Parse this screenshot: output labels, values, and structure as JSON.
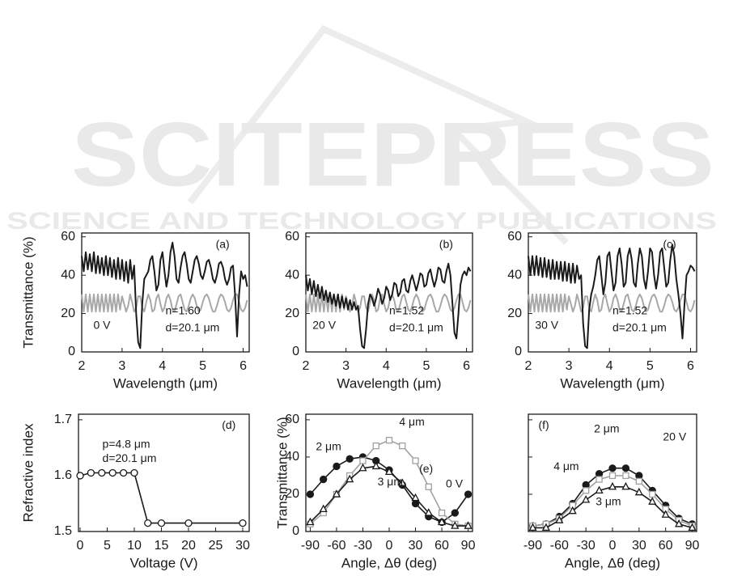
{
  "watermark": {
    "title": "SCITEPRESS",
    "subtitle": "SCIENCE AND TECHNOLOGY PUBLICATIONS"
  },
  "chart_data": [
    {
      "type": "line",
      "ylabel": "Transmittance (%)",
      "xlabel": "Wavelength (μm)",
      "xlim": [
        2,
        6.15
      ],
      "xticks": [
        2,
        3,
        4,
        5,
        6
      ],
      "ylim": [
        0,
        62
      ],
      "yticks": [
        0,
        20,
        40,
        60
      ],
      "annotations": [
        "(a)",
        "n=1.60",
        "d=20.1 μm",
        "0 V"
      ],
      "x": [
        2,
        2.05,
        2.1,
        2.15,
        2.2,
        2.25,
        2.3,
        2.35,
        2.4,
        2.45,
        2.5,
        2.55,
        2.6,
        2.65,
        2.7,
        2.75,
        2.8,
        2.85,
        2.9,
        2.95,
        3,
        3.05,
        3.1,
        3.15,
        3.2,
        3.25,
        3.3,
        3.35,
        3.4,
        3.45,
        3.5,
        3.55,
        3.6,
        3.65,
        3.7,
        3.75,
        3.8,
        3.85,
        3.9,
        3.95,
        4,
        4.05,
        4.1,
        4.15,
        4.2,
        4.25,
        4.3,
        4.35,
        4.4,
        4.45,
        4.5,
        4.55,
        4.6,
        4.65,
        4.7,
        4.75,
        4.8,
        4.85,
        4.9,
        4.95,
        5,
        5.05,
        5.1,
        5.15,
        5.2,
        5.25,
        5.3,
        5.35,
        5.4,
        5.45,
        5.5,
        5.55,
        5.6,
        5.65,
        5.7,
        5.75,
        5.8,
        5.85,
        5.9,
        5.95,
        6,
        6.05,
        6.1
      ],
      "series": [
        {
          "color": "#a8a8a8",
          "values": [
            30,
            21,
            30,
            21,
            30,
            21,
            30,
            21,
            30,
            21,
            30,
            21,
            30,
            21,
            30,
            21,
            30,
            21,
            30,
            22,
            29,
            25,
            21,
            24,
            30,
            26,
            21,
            23,
            29,
            29,
            23,
            21,
            26,
            30,
            27,
            21,
            22,
            28,
            30,
            25,
            21,
            23,
            28,
            30,
            27,
            22,
            21,
            25,
            29,
            30,
            26,
            22,
            21,
            24,
            28,
            30,
            28,
            24,
            21,
            22,
            26,
            29,
            30,
            28,
            24,
            21,
            21,
            24,
            28,
            30,
            29,
            26,
            22,
            21,
            23,
            27,
            30,
            30,
            26,
            22,
            21,
            23,
            27
          ]
        },
        {
          "color": "#1a1a1a",
          "values": [
            50,
            42,
            52,
            43,
            51,
            42,
            52,
            41,
            50,
            41,
            49,
            40,
            50,
            40,
            49,
            39,
            48,
            38,
            49,
            38,
            48,
            37,
            47,
            36,
            48,
            38,
            45,
            20,
            5,
            2,
            25,
            38,
            40,
            42,
            48,
            50,
            42,
            32,
            35,
            48,
            52,
            42,
            34,
            40,
            52,
            57,
            50,
            38,
            36,
            44,
            50,
            52,
            46,
            38,
            36,
            42,
            48,
            50,
            46,
            40,
            38,
            42,
            47,
            48,
            44,
            38,
            36,
            40,
            46,
            47,
            44,
            38,
            35,
            38,
            44,
            45,
            30,
            8,
            30,
            42,
            38,
            40,
            34
          ]
        }
      ]
    },
    {
      "type": "line",
      "xlabel": "Wavelength (μm)",
      "xlim": [
        2,
        6.15
      ],
      "xticks": [
        2,
        3,
        4,
        5,
        6
      ],
      "ylim": [
        0,
        62
      ],
      "yticks": [
        0,
        20,
        40,
        60
      ],
      "annotations": [
        "(b)",
        "n=1.52",
        "d=20.1 μm",
        "20 V"
      ],
      "x": [
        2,
        2.05,
        2.1,
        2.15,
        2.2,
        2.25,
        2.3,
        2.35,
        2.4,
        2.45,
        2.5,
        2.55,
        2.6,
        2.65,
        2.7,
        2.75,
        2.8,
        2.85,
        2.9,
        2.95,
        3,
        3.05,
        3.1,
        3.15,
        3.2,
        3.25,
        3.3,
        3.35,
        3.4,
        3.45,
        3.5,
        3.55,
        3.6,
        3.65,
        3.7,
        3.75,
        3.8,
        3.85,
        3.9,
        3.95,
        4,
        4.05,
        4.1,
        4.15,
        4.2,
        4.25,
        4.3,
        4.35,
        4.4,
        4.45,
        4.5,
        4.55,
        4.6,
        4.65,
        4.7,
        4.75,
        4.8,
        4.85,
        4.9,
        4.95,
        5,
        5.05,
        5.1,
        5.15,
        5.2,
        5.25,
        5.3,
        5.35,
        5.4,
        5.45,
        5.5,
        5.55,
        5.6,
        5.65,
        5.7,
        5.75,
        5.8,
        5.85,
        5.9,
        5.95,
        6,
        6.05,
        6.1
      ],
      "series": [
        {
          "color": "#a8a8a8",
          "values": [
            30,
            21,
            30,
            21,
            30,
            21,
            30,
            21,
            30,
            21,
            30,
            21,
            30,
            21,
            30,
            21,
            30,
            21,
            30,
            22,
            29,
            25,
            21,
            24,
            30,
            26,
            21,
            23,
            29,
            29,
            23,
            21,
            26,
            30,
            27,
            21,
            22,
            28,
            30,
            25,
            21,
            23,
            28,
            30,
            27,
            22,
            21,
            25,
            29,
            30,
            26,
            22,
            21,
            24,
            28,
            30,
            28,
            24,
            21,
            22,
            26,
            29,
            30,
            28,
            24,
            21,
            21,
            24,
            28,
            30,
            29,
            26,
            22,
            21,
            23,
            27,
            30,
            30,
            26,
            22,
            21,
            23,
            27
          ]
        },
        {
          "color": "#1a1a1a",
          "values": [
            40,
            32,
            38,
            30,
            37,
            29,
            35,
            28,
            34,
            27,
            32,
            26,
            31,
            25,
            30,
            24,
            30,
            23,
            29,
            23,
            28,
            22,
            27,
            22,
            26,
            22,
            24,
            12,
            3,
            2,
            12,
            25,
            30,
            28,
            24,
            28,
            33,
            30,
            25,
            28,
            34,
            32,
            27,
            30,
            36,
            35,
            29,
            31,
            37,
            38,
            32,
            31,
            37,
            40,
            36,
            32,
            36,
            41,
            40,
            34,
            35,
            41,
            43,
            38,
            34,
            38,
            44,
            43,
            37,
            36,
            42,
            46,
            40,
            25,
            10,
            7,
            20,
            35,
            40,
            42,
            40,
            44,
            42
          ]
        }
      ]
    },
    {
      "type": "line",
      "xlabel": "Wavelength (μm)",
      "xlim": [
        2,
        6.15
      ],
      "xticks": [
        2,
        3,
        4,
        5,
        6
      ],
      "ylim": [
        0,
        62
      ],
      "yticks": [
        0,
        20,
        40,
        60
      ],
      "annotations": [
        "(c)",
        "n=1.52",
        "d=20.1 μm",
        "30 V"
      ],
      "x": [
        2,
        2.05,
        2.1,
        2.15,
        2.2,
        2.25,
        2.3,
        2.35,
        2.4,
        2.45,
        2.5,
        2.55,
        2.6,
        2.65,
        2.7,
        2.75,
        2.8,
        2.85,
        2.9,
        2.95,
        3,
        3.05,
        3.1,
        3.15,
        3.2,
        3.25,
        3.3,
        3.35,
        3.4,
        3.45,
        3.5,
        3.55,
        3.6,
        3.65,
        3.7,
        3.75,
        3.8,
        3.85,
        3.9,
        3.95,
        4,
        4.05,
        4.1,
        4.15,
        4.2,
        4.25,
        4.3,
        4.35,
        4.4,
        4.45,
        4.5,
        4.55,
        4.6,
        4.65,
        4.7,
        4.75,
        4.8,
        4.85,
        4.9,
        4.95,
        5,
        5.05,
        5.1,
        5.15,
        5.2,
        5.25,
        5.3,
        5.35,
        5.4,
        5.45,
        5.5,
        5.55,
        5.6,
        5.65,
        5.7,
        5.75,
        5.8,
        5.85,
        5.9,
        5.95,
        6,
        6.05,
        6.1
      ],
      "series": [
        {
          "color": "#a8a8a8",
          "values": [
            30,
            21,
            30,
            21,
            30,
            21,
            30,
            21,
            30,
            21,
            30,
            21,
            30,
            21,
            30,
            21,
            30,
            21,
            30,
            22,
            29,
            25,
            21,
            24,
            30,
            26,
            21,
            23,
            29,
            29,
            23,
            21,
            26,
            30,
            27,
            21,
            22,
            28,
            30,
            25,
            21,
            23,
            28,
            30,
            27,
            22,
            21,
            25,
            29,
            30,
            26,
            22,
            21,
            24,
            28,
            30,
            28,
            24,
            21,
            22,
            26,
            29,
            30,
            28,
            24,
            21,
            21,
            24,
            28,
            30,
            29,
            26,
            22,
            21,
            23,
            27,
            30,
            30,
            26,
            22,
            21,
            23,
            27
          ]
        },
        {
          "color": "#1a1a1a",
          "values": [
            50,
            40,
            50,
            40,
            50,
            40,
            49,
            39,
            49,
            39,
            48,
            38,
            48,
            38,
            47,
            38,
            47,
            37,
            47,
            37,
            46,
            36,
            46,
            36,
            45,
            38,
            40,
            15,
            3,
            2,
            22,
            30,
            34,
            40,
            48,
            50,
            40,
            30,
            36,
            50,
            52,
            42,
            32,
            36,
            50,
            54,
            46,
            34,
            36,
            50,
            54,
            48,
            36,
            34,
            46,
            54,
            50,
            38,
            33,
            42,
            54,
            52,
            40,
            33,
            40,
            52,
            54,
            44,
            34,
            36,
            48,
            56,
            50,
            38,
            30,
            20,
            7,
            25,
            40,
            42,
            45,
            44,
            42
          ]
        }
      ]
    },
    {
      "type": "line",
      "ylabel": "Refractive index",
      "xlabel": "Voltage (V)",
      "xlim": [
        -0.3,
        31.2
      ],
      "xticks": [
        0,
        5,
        10,
        15,
        20,
        25,
        30
      ],
      "ylim": [
        1.5,
        1.71
      ],
      "yticks": [
        1.5,
        1.6,
        1.7
      ],
      "annotations": [
        "(d)",
        "p=4.8 μm",
        "d=20.1 μm"
      ],
      "x": [
        0,
        2,
        4,
        6,
        8,
        10,
        12.5,
        15,
        20,
        30
      ],
      "series": [
        {
          "color": "#1a1a1a",
          "marker": "circle",
          "marker_fill": false,
          "values": [
            1.6,
            1.605,
            1.605,
            1.605,
            1.605,
            1.605,
            1.515,
            1.515,
            1.515,
            1.515
          ]
        }
      ]
    },
    {
      "type": "line",
      "ylabel": "Transmittance (%)",
      "xlabel": "Angle, Δθ (deg)",
      "xlim": [
        -95,
        95
      ],
      "xticks": [
        -90,
        -60,
        -30,
        0,
        30,
        60,
        90
      ],
      "ylim": [
        0,
        63
      ],
      "yticks": [
        0,
        20,
        40,
        60
      ],
      "annotations": [
        "(e)",
        "0 V"
      ],
      "x": [
        -90,
        -75,
        -60,
        -45,
        -30,
        -15,
        0,
        15,
        30,
        45,
        60,
        75,
        90
      ],
      "series": [
        {
          "name": "2 μm",
          "color": "#1a1a1a",
          "marker": "circle",
          "marker_fill": true,
          "values": [
            20,
            28,
            35,
            39,
            40,
            38,
            33,
            25,
            15,
            8,
            5,
            10,
            20
          ]
        },
        {
          "name": "4 μm",
          "color": "#a0a0a0",
          "marker": "square",
          "marker_fill": false,
          "values": [
            4,
            10,
            20,
            30,
            38,
            46,
            49,
            46,
            38,
            24,
            10,
            4,
            3
          ]
        },
        {
          "name": "3 μm",
          "color": "#1a1a1a",
          "marker": "triangle",
          "marker_fill": false,
          "values": [
            5,
            12,
            20,
            28,
            34,
            35,
            32,
            26,
            18,
            10,
            5,
            3,
            3
          ]
        }
      ]
    },
    {
      "type": "line",
      "xlabel": "Angle, Δθ (deg)",
      "ytick_labels": false,
      "xlim": [
        -95,
        95
      ],
      "xticks": [
        -90,
        -60,
        -30,
        0,
        30,
        60,
        90
      ],
      "ylim": [
        0,
        63
      ],
      "yticks": [
        0,
        20,
        40,
        60
      ],
      "annotations": [
        "(f)",
        "20 V"
      ],
      "x": [
        -90,
        -75,
        -60,
        -45,
        -30,
        -15,
        0,
        15,
        30,
        45,
        60,
        75,
        90
      ],
      "series": [
        {
          "name": "2 μm",
          "color": "#1a1a1a",
          "marker": "circle",
          "marker_fill": true,
          "values": [
            3,
            4,
            8,
            15,
            25,
            31,
            34,
            34,
            30,
            22,
            14,
            7,
            4
          ]
        },
        {
          "name": "4 μm",
          "color": "#a0a0a0",
          "marker": "square",
          "marker_fill": false,
          "values": [
            3,
            4,
            7,
            14,
            22,
            28,
            30,
            30,
            27,
            20,
            12,
            6,
            3
          ]
        },
        {
          "name": "3 μm",
          "color": "#1a1a1a",
          "marker": "triangle",
          "marker_fill": false,
          "values": [
            2,
            2,
            6,
            11,
            17,
            22,
            24,
            24,
            21,
            16,
            9,
            4,
            2
          ]
        }
      ]
    }
  ]
}
